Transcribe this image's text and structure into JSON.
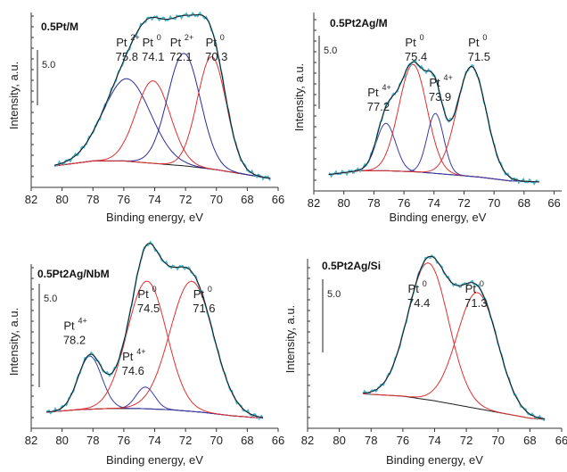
{
  "colors": {
    "experimental": "#45b5cf",
    "envelope": "#1a1a1a",
    "background": "#1a1a1a",
    "pt0": "#e03030",
    "pt2": "#2a2a9a",
    "pt4": "#3a3aa8",
    "axis": "#333333"
  },
  "chart_data": [
    {
      "type": "line",
      "title": "0.5Pt/M",
      "xlabel": "Binding energy, eV",
      "ylabel": "Intensity, a.u.",
      "scale_bar_label": "5.0",
      "xlim": [
        82,
        66
      ],
      "x_ticks": [
        "82",
        "80",
        "78",
        "76",
        "74",
        "72",
        "70",
        "68",
        "66"
      ],
      "background": {
        "x": [
          80.5,
          78,
          76,
          74,
          72,
          70,
          68,
          66.5
        ],
        "y": [
          0.5,
          0.7,
          0.7,
          0.6,
          0.5,
          0.35,
          0.15,
          0.0
        ]
      },
      "peaks": [
        {
          "name": "Pt",
          "charge": "2+",
          "position": "75.8",
          "center": 75.8,
          "height": 3.3,
          "fwhm": 3.6,
          "color_key": "pt2",
          "label_x": 75.8
        },
        {
          "name": "Pt",
          "charge": "0",
          "position": "74.1",
          "center": 74.1,
          "height": 3.3,
          "fwhm": 2.6,
          "color_key": "pt0",
          "label_x": 74.1
        },
        {
          "name": "Pt",
          "charge": "2+",
          "position": "72.1",
          "center": 72.1,
          "height": 4.5,
          "fwhm": 2.5,
          "color_key": "pt2",
          "label_x": 72.3
        },
        {
          "name": "Pt",
          "charge": "0",
          "position": "70.3",
          "center": 70.3,
          "height": 4.5,
          "fwhm": 2.2,
          "color_key": "pt0",
          "label_x": 70.0
        }
      ],
      "label_row": "high"
    },
    {
      "type": "line",
      "title": "0.5Pt2Ag/M",
      "xlabel": "Binding energy, eV",
      "ylabel": "Intensity, a.u.",
      "scale_bar_label": "5.0",
      "xlim": [
        82,
        65.5
      ],
      "x_ticks": [
        "82",
        "80",
        "78",
        "76",
        "74",
        "72",
        "70",
        "68",
        "66"
      ],
      "background": {
        "x": [
          81,
          79,
          77,
          75,
          73,
          71,
          69,
          67
        ],
        "y": [
          0.3,
          0.45,
          0.45,
          0.4,
          0.3,
          0.2,
          0.05,
          0.0
        ]
      },
      "peaks": [
        {
          "name": "Pt",
          "charge": "4+",
          "position": "77.2",
          "center": 77.2,
          "height": 1.9,
          "fwhm": 1.5,
          "color_key": "pt4",
          "label_x": 77.7
        },
        {
          "name": "Pt",
          "charge": "0",
          "position": "75.4",
          "center": 75.4,
          "height": 4.3,
          "fwhm": 2.2,
          "color_key": "pt0",
          "label_x": 75.2
        },
        {
          "name": "Pt",
          "charge": "4+",
          "position": "73.9",
          "center": 73.9,
          "height": 2.4,
          "fwhm": 1.3,
          "color_key": "pt4",
          "label_x": 73.6
        },
        {
          "name": "Pt",
          "charge": "0",
          "position": "71.5",
          "center": 71.5,
          "height": 4.4,
          "fwhm": 2.3,
          "color_key": "pt0",
          "label_x": 71.0
        }
      ],
      "label_row": "mixed"
    },
    {
      "type": "line",
      "title": "0.5Pt2Ag/NbM",
      "xlabel": "Binding energy, eV",
      "ylabel": "Intensity, a.u.",
      "scale_bar_label": "5.0",
      "xlim": [
        82,
        66
      ],
      "x_ticks": [
        "82",
        "80",
        "78",
        "76",
        "74",
        "72",
        "70",
        "68",
        "66"
      ],
      "background": {
        "x": [
          81,
          79,
          77,
          75,
          73,
          71,
          69,
          67
        ],
        "y": [
          0.3,
          0.4,
          0.45,
          0.45,
          0.4,
          0.3,
          0.15,
          0.05
        ]
      },
      "peaks": [
        {
          "name": "Pt",
          "charge": "4+",
          "position": "78.2",
          "center": 78.2,
          "height": 2.2,
          "fwhm": 1.8,
          "color_key": "pt4",
          "label_x": 79.2
        },
        {
          "name": "Pt",
          "charge": "4+",
          "position": "74.6",
          "center": 74.6,
          "height": 0.9,
          "fwhm": 1.4,
          "color_key": "pt4",
          "label_x": 75.4
        },
        {
          "name": "Pt",
          "charge": "0",
          "position": "74.5",
          "center": 74.5,
          "height": 5.3,
          "fwhm": 3.0,
          "color_key": "pt0",
          "label_x": 74.4
        },
        {
          "name": "Pt",
          "charge": "0",
          "position": "71.6",
          "center": 71.6,
          "height": 5.4,
          "fwhm": 3.3,
          "color_key": "pt0",
          "label_x": 70.8
        }
      ],
      "label_row": "mixed"
    },
    {
      "type": "line",
      "title": "0.5Pt2Ag/Si",
      "xlabel": "Binding energy, eV",
      "ylabel": "Intensity, a.u.",
      "scale_bar_label": "5.0",
      "xlim": [
        82,
        66
      ],
      "x_ticks": [
        "82",
        "80",
        "78",
        "76",
        "74",
        "72",
        "70",
        "68",
        "66"
      ],
      "background": {
        "x": [
          78.5,
          76,
          74,
          72,
          70,
          68,
          67
        ],
        "y": [
          1.1,
          1.0,
          0.8,
          0.55,
          0.3,
          0.05,
          0.0
        ]
      },
      "peaks": [
        {
          "name": "Pt",
          "charge": "0",
          "position": "74.4",
          "center": 74.4,
          "height": 5.9,
          "fwhm": 3.0,
          "color_key": "pt0",
          "label_x": 75.0
        },
        {
          "name": "Pt",
          "charge": "0",
          "position": "71.3",
          "center": 71.3,
          "height": 5.0,
          "fwhm": 3.0,
          "color_key": "pt0",
          "label_x": 71.4
        }
      ],
      "label_row": "high"
    }
  ]
}
